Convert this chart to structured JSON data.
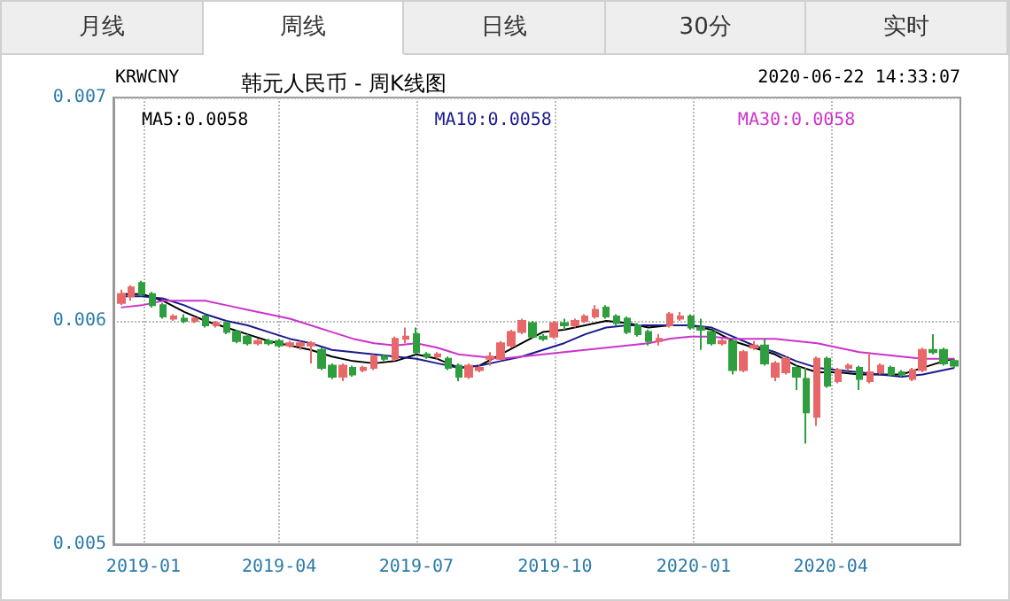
{
  "chart_data": {
    "type": "candlestick",
    "title": "韩元人民币 - 周K线图",
    "annotations": [
      "月线",
      "周线",
      "日线",
      "30分",
      "实时",
      "KRWCNY",
      "2020-06-22 14:33:07"
    ],
    "x": [
      "2018-12-17",
      "2018-12-24",
      "2018-12-31",
      "2019-01-07",
      "2019-01-14",
      "2019-01-21",
      "2019-01-28",
      "2019-02-04",
      "2019-02-11",
      "2019-02-18",
      "2019-02-25",
      "2019-03-04",
      "2019-03-11",
      "2019-03-18",
      "2019-03-25",
      "2019-04-01",
      "2019-04-08",
      "2019-04-15",
      "2019-04-22",
      "2019-04-29",
      "2019-05-06",
      "2019-05-13",
      "2019-05-20",
      "2019-05-27",
      "2019-06-03",
      "2019-06-10",
      "2019-06-17",
      "2019-06-24",
      "2019-07-01",
      "2019-07-08",
      "2019-07-15",
      "2019-07-22",
      "2019-07-29",
      "2019-08-05",
      "2019-08-12",
      "2019-08-19",
      "2019-08-26",
      "2019-09-02",
      "2019-09-09",
      "2019-09-16",
      "2019-09-23",
      "2019-09-30",
      "2019-10-07",
      "2019-10-14",
      "2019-10-21",
      "2019-10-28",
      "2019-11-04",
      "2019-11-11",
      "2019-11-18",
      "2019-11-25",
      "2019-12-02",
      "2019-12-09",
      "2019-12-16",
      "2019-12-23",
      "2019-12-30",
      "2020-01-06",
      "2020-01-13",
      "2020-01-20",
      "2020-01-27",
      "2020-02-03",
      "2020-02-10",
      "2020-02-17",
      "2020-02-24",
      "2020-03-02",
      "2020-03-09",
      "2020-03-16",
      "2020-03-23",
      "2020-03-30",
      "2020-04-06",
      "2020-04-13",
      "2020-04-20",
      "2020-04-27",
      "2020-05-04",
      "2020-05-11",
      "2020-05-18",
      "2020-05-25",
      "2020-06-01",
      "2020-06-08",
      "2020-06-15",
      "2020-06-22"
    ],
    "ohlc": [
      [
        0.00608,
        0.00614,
        0.00607,
        0.00612
      ],
      [
        0.00611,
        0.00616,
        0.00609,
        0.00615
      ],
      [
        0.00617,
        0.00618,
        0.00611,
        0.00612
      ],
      [
        0.00612,
        0.00613,
        0.00606,
        0.00607
      ],
      [
        0.00607,
        0.00608,
        0.00601,
        0.00602
      ],
      [
        0.00601,
        0.00603,
        0.006,
        0.00602
      ],
      [
        0.00601,
        0.00603,
        0.00599,
        0.006
      ],
      [
        0.006,
        0.00602,
        0.00599,
        0.00601
      ],
      [
        0.00602,
        0.00603,
        0.00597,
        0.00598
      ],
      [
        0.00598,
        0.006,
        0.00597,
        0.00599
      ],
      [
        0.00599,
        0.006,
        0.00594,
        0.00595
      ],
      [
        0.00595,
        0.00596,
        0.0059,
        0.00591
      ],
      [
        0.00593,
        0.00594,
        0.00589,
        0.0059
      ],
      [
        0.0059,
        0.00592,
        0.00589,
        0.00591
      ],
      [
        0.00591,
        0.00592,
        0.00589,
        0.0059
      ],
      [
        0.00591,
        0.00592,
        0.00588,
        0.00589
      ],
      [
        0.00589,
        0.00591,
        0.00588,
        0.0059
      ],
      [
        0.00589,
        0.00591,
        0.00587,
        0.0059
      ],
      [
        0.00589,
        0.00591,
        0.00581,
        0.0059
      ],
      [
        0.00587,
        0.00588,
        0.00578,
        0.00579
      ],
      [
        0.0058,
        0.00581,
        0.00574,
        0.00575
      ],
      [
        0.00575,
        0.00581,
        0.00573,
        0.0058
      ],
      [
        0.00579,
        0.0058,
        0.00575,
        0.00576
      ],
      [
        0.00578,
        0.0058,
        0.00577,
        0.00579
      ],
      [
        0.00579,
        0.00585,
        0.00578,
        0.00584
      ],
      [
        0.00584,
        0.00585,
        0.00582,
        0.00583
      ],
      [
        0.00583,
        0.00593,
        0.00582,
        0.00592
      ],
      [
        0.00592,
        0.00597,
        0.0059,
        0.00593
      ],
      [
        0.00594,
        0.00597,
        0.00585,
        0.00586
      ],
      [
        0.00585,
        0.00586,
        0.00583,
        0.00584
      ],
      [
        0.00584,
        0.00586,
        0.00583,
        0.00585
      ],
      [
        0.00583,
        0.00584,
        0.00578,
        0.00579
      ],
      [
        0.0058,
        0.00581,
        0.00573,
        0.00575
      ],
      [
        0.00575,
        0.00581,
        0.00574,
        0.0058
      ],
      [
        0.00578,
        0.0058,
        0.00577,
        0.00579
      ],
      [
        0.00583,
        0.00586,
        0.0058,
        0.00584
      ],
      [
        0.00583,
        0.00591,
        0.00582,
        0.0059
      ],
      [
        0.00589,
        0.00596,
        0.00588,
        0.00595
      ],
      [
        0.00595,
        0.00601,
        0.00594,
        0.006
      ],
      [
        0.00599,
        0.006,
        0.00592,
        0.00593
      ],
      [
        0.00593,
        0.00594,
        0.00591,
        0.00592
      ],
      [
        0.00593,
        0.006,
        0.00592,
        0.00599
      ],
      [
        0.00599,
        0.00601,
        0.00596,
        0.00598
      ],
      [
        0.00598,
        0.00601,
        0.00597,
        0.006
      ],
      [
        0.006,
        0.00603,
        0.00599,
        0.00602
      ],
      [
        0.00602,
        0.00607,
        0.00601,
        0.00605
      ],
      [
        0.00606,
        0.00607,
        0.00601,
        0.00602
      ],
      [
        0.00602,
        0.00603,
        0.00598,
        0.00599
      ],
      [
        0.00601,
        0.00602,
        0.00594,
        0.00595
      ],
      [
        0.00598,
        0.00599,
        0.00593,
        0.00594
      ],
      [
        0.00595,
        0.00596,
        0.00589,
        0.00591
      ],
      [
        0.00591,
        0.00594,
        0.00589,
        0.00592
      ],
      [
        0.00598,
        0.00604,
        0.00597,
        0.00603
      ],
      [
        0.00601,
        0.00604,
        0.006,
        0.00602
      ],
      [
        0.00602,
        0.00603,
        0.00596,
        0.00597
      ],
      [
        0.00597,
        0.00601,
        0.00587,
        0.00596
      ],
      [
        0.00595,
        0.00596,
        0.00589,
        0.0059
      ],
      [
        0.0059,
        0.00592,
        0.00589,
        0.00591
      ],
      [
        0.00591,
        0.00592,
        0.00576,
        0.00578
      ],
      [
        0.00578,
        0.00587,
        0.00577,
        0.00586
      ],
      [
        0.00588,
        0.00591,
        0.00587,
        0.00589
      ],
      [
        0.00589,
        0.00592,
        0.0058,
        0.00581
      ],
      [
        0.00575,
        0.00582,
        0.00573,
        0.00581
      ],
      [
        0.00577,
        0.00584,
        0.00576,
        0.00583
      ],
      [
        0.00579,
        0.0058,
        0.00569,
        0.00575
      ],
      [
        0.00574,
        0.00579,
        0.00545,
        0.00559
      ],
      [
        0.00557,
        0.00584,
        0.00553,
        0.00583
      ],
      [
        0.00583,
        0.00584,
        0.0057,
        0.00571
      ],
      [
        0.00573,
        0.00579,
        0.00572,
        0.00578
      ],
      [
        0.00579,
        0.00581,
        0.00578,
        0.0058
      ],
      [
        0.00579,
        0.0058,
        0.00569,
        0.00574
      ],
      [
        0.00573,
        0.00586,
        0.00572,
        0.00577
      ],
      [
        0.00577,
        0.00581,
        0.00576,
        0.0058
      ],
      [
        0.00579,
        0.0058,
        0.00575,
        0.00576
      ],
      [
        0.00577,
        0.00578,
        0.00575,
        0.00576
      ],
      [
        0.00574,
        0.00579,
        0.00573,
        0.00578
      ],
      [
        0.00578,
        0.00588,
        0.00577,
        0.00587
      ],
      [
        0.00587,
        0.00594,
        0.00585,
        0.00586
      ],
      [
        0.00587,
        0.00588,
        0.0058,
        0.00581
      ],
      [
        0.00582,
        0.00583,
        0.00579,
        0.0058
      ]
    ],
    "colors": [
      "#e8686a",
      "#e8686a",
      "#2f9e3e",
      "#2f9e3e",
      "#2f9e3e",
      "#e8686a",
      "#2f9e3e",
      "#e8686a",
      "#2f9e3e",
      "#e8686a",
      "#2f9e3e",
      "#2f9e3e",
      "#2f9e3e",
      "#e8686a",
      "#2f9e3e",
      "#2f9e3e",
      "#e8686a",
      "#e8686a",
      "#e8686a",
      "#2f9e3e",
      "#2f9e3e",
      "#e8686a",
      "#2f9e3e",
      "#e8686a",
      "#e8686a",
      "#2f9e3e",
      "#e8686a",
      "#e8686a",
      "#2f9e3e",
      "#2f9e3e",
      "#e8686a",
      "#2f9e3e",
      "#2f9e3e",
      "#e8686a",
      "#e8686a",
      "#e8686a",
      "#e8686a",
      "#e8686a",
      "#e8686a",
      "#2f9e3e",
      "#2f9e3e",
      "#e8686a",
      "#2f9e3e",
      "#e8686a",
      "#e8686a",
      "#e8686a",
      "#2f9e3e",
      "#2f9e3e",
      "#2f9e3e",
      "#2f9e3e",
      "#2f9e3e",
      "#e8686a",
      "#e8686a",
      "#e8686a",
      "#2f9e3e",
      "#2f9e3e",
      "#2f9e3e",
      "#e8686a",
      "#2f9e3e",
      "#e8686a",
      "#e8686a",
      "#2f9e3e",
      "#e8686a",
      "#e8686a",
      "#2f9e3e",
      "#2f9e3e",
      "#e8686a",
      "#2f9e3e",
      "#e8686a",
      "#e8686a",
      "#2f9e3e",
      "#e8686a",
      "#e8686a",
      "#2f9e3e",
      "#2f9e3e",
      "#e8686a",
      "#e8686a",
      "#2f9e3e",
      "#2f9e3e",
      "#2f9e3e"
    ],
    "series": [
      {
        "type": "line",
        "name": "MA5:0.0058",
        "color": "#000000",
        "x": [
          "2018-12-17",
          "2018-12-31",
          "2019-01-14",
          "2019-01-28",
          "2019-02-11",
          "2019-02-25",
          "2019-03-11",
          "2019-03-25",
          "2019-04-08",
          "2019-04-22",
          "2019-05-06",
          "2019-05-20",
          "2019-06-03",
          "2019-06-17",
          "2019-07-01",
          "2019-07-15",
          "2019-07-29",
          "2019-08-12",
          "2019-08-26",
          "2019-09-09",
          "2019-09-23",
          "2019-10-07",
          "2019-10-21",
          "2019-11-04",
          "2019-11-18",
          "2019-12-02",
          "2019-12-16",
          "2019-12-30",
          "2020-01-13",
          "2020-01-27",
          "2020-02-10",
          "2020-02-24",
          "2020-03-09",
          "2020-03-23",
          "2020-04-06",
          "2020-04-20",
          "2020-05-04",
          "2020-05-18",
          "2020-06-01",
          "2020-06-15",
          "2020-06-22"
        ],
        "values": [
          0.00612,
          0.00612,
          0.00609,
          0.00604,
          0.006,
          0.00597,
          0.00594,
          0.00591,
          0.00589,
          0.00587,
          0.00584,
          0.00582,
          0.00581,
          0.00582,
          0.00585,
          0.00583,
          0.00579,
          0.0058,
          0.00585,
          0.0059,
          0.00595,
          0.00596,
          0.00598,
          0.006,
          0.00599,
          0.00597,
          0.00598,
          0.00598,
          0.00596,
          0.00591,
          0.00588,
          0.00585,
          0.0058,
          0.00577,
          0.00577,
          0.00576,
          0.00576,
          0.00576,
          0.00579,
          0.00582,
          0.00583
        ]
      },
      {
        "type": "line",
        "name": "MA10:0.0058",
        "color": "#1a1a8c",
        "x": [
          "2018-12-17",
          "2018-12-31",
          "2019-01-14",
          "2019-01-28",
          "2019-02-11",
          "2019-02-25",
          "2019-03-11",
          "2019-03-25",
          "2019-04-08",
          "2019-04-22",
          "2019-05-06",
          "2019-05-20",
          "2019-06-03",
          "2019-06-17",
          "2019-07-01",
          "2019-07-15",
          "2019-07-29",
          "2019-08-12",
          "2019-08-26",
          "2019-09-09",
          "2019-09-23",
          "2019-10-07",
          "2019-10-21",
          "2019-11-04",
          "2019-11-18",
          "2019-12-02",
          "2019-12-16",
          "2019-12-30",
          "2020-01-13",
          "2020-01-27",
          "2020-02-10",
          "2020-02-24",
          "2020-03-09",
          "2020-03-23",
          "2020-04-06",
          "2020-04-20",
          "2020-05-04",
          "2020-05-18",
          "2020-06-01",
          "2020-06-15",
          "2020-06-22"
        ],
        "values": [
          0.00611,
          0.00611,
          0.0061,
          0.00607,
          0.00603,
          0.006,
          0.00598,
          0.00595,
          0.00592,
          0.0059,
          0.00587,
          0.00586,
          0.00585,
          0.00584,
          0.00583,
          0.00581,
          0.00579,
          0.0058,
          0.00582,
          0.00584,
          0.00587,
          0.0059,
          0.00594,
          0.00597,
          0.00598,
          0.00598,
          0.00598,
          0.00598,
          0.00597,
          0.00593,
          0.00589,
          0.00586,
          0.00582,
          0.00579,
          0.00578,
          0.00577,
          0.00576,
          0.00575,
          0.00576,
          0.00578,
          0.00579
        ]
      },
      {
        "type": "line",
        "name": "MA30:0.0058",
        "color": "#cc33cc",
        "x": [
          "2018-12-17",
          "2018-12-31",
          "2019-01-14",
          "2019-01-28",
          "2019-02-11",
          "2019-02-25",
          "2019-03-11",
          "2019-03-25",
          "2019-04-08",
          "2019-04-22",
          "2019-05-06",
          "2019-05-20",
          "2019-06-03",
          "2019-06-17",
          "2019-07-01",
          "2019-07-15",
          "2019-07-29",
          "2019-08-12",
          "2019-08-26",
          "2019-09-09",
          "2019-09-23",
          "2019-10-07",
          "2019-10-21",
          "2019-11-04",
          "2019-11-18",
          "2019-12-02",
          "2019-12-16",
          "2019-12-30",
          "2020-01-13",
          "2020-01-27",
          "2020-02-10",
          "2020-02-24",
          "2020-03-09",
          "2020-03-23",
          "2020-04-06",
          "2020-04-20",
          "2020-05-04",
          "2020-05-18",
          "2020-06-01",
          "2020-06-15",
          "2020-06-22"
        ],
        "values": [
          0.00606,
          0.00607,
          0.00609,
          0.00609,
          0.00609,
          0.00607,
          0.00605,
          0.00603,
          0.00601,
          0.00598,
          0.00595,
          0.00592,
          0.0059,
          0.00589,
          0.0059,
          0.00588,
          0.00585,
          0.00584,
          0.00583,
          0.00584,
          0.00585,
          0.00586,
          0.00587,
          0.00588,
          0.00589,
          0.0059,
          0.00592,
          0.00593,
          0.00593,
          0.00592,
          0.00592,
          0.00592,
          0.00591,
          0.0059,
          0.00588,
          0.00586,
          0.00585,
          0.00584,
          0.00583,
          0.00583,
          0.00583
        ]
      }
    ],
    "xlim": [
      "2018-12-12",
      "2020-06-26"
    ],
    "xticks": [
      "2019-01",
      "2019-04",
      "2019-07",
      "2019-10",
      "2020-01",
      "2020-04"
    ],
    "ylim": [
      0.005,
      0.007
    ],
    "yticks": [
      0.005,
      0.006,
      0.007
    ],
    "grid": true,
    "legend": "top left",
    "marker": "none"
  }
}
